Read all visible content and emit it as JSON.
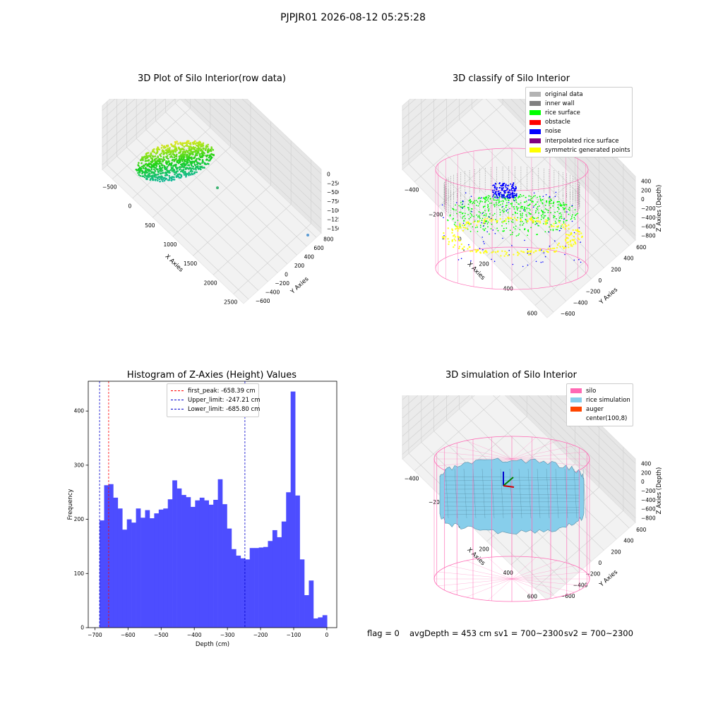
{
  "suptitle": "PJPJR01 2026-08-12 05:25:28",
  "status": {
    "flag": "flag = 0",
    "avg_depth": "avgDepth = 453 cm",
    "sv1": "sv1 = 700~2300",
    "sv2": "sv2 = 700~2300"
  },
  "colors": {
    "hist_bar": "#4d4dff",
    "peak_line": "#ff0000",
    "limit_line": "#0000cc",
    "original": "#b3b3b3",
    "inner_wall": "#808080",
    "rice_surface": "#00ff00",
    "obstacle": "#ff0000",
    "noise": "#0000ff",
    "interp": "#800080",
    "symmetric": "#ffff00",
    "silo": "#ff69b4",
    "rice_sim": "#87ceeb",
    "auger": "#ff4500"
  },
  "chart_data": [
    {
      "type": "scatter",
      "title": "3D Plot of Silo Interior(row data)",
      "xlabel": "X Axies",
      "ylabel": "Y Axies",
      "zlabel": "Z Axies (Depth)",
      "xticks": [
        "−500",
        "0",
        "500",
        "1000",
        "1500",
        "2000",
        "2500"
      ],
      "yticks": [
        "−600",
        "−400",
        "−200",
        "0",
        "200",
        "400",
        "600",
        "800"
      ],
      "zticks": [
        "0",
        "−250",
        "−500",
        "−750",
        "−1000",
        "−1250",
        "−1500"
      ]
    },
    {
      "type": "scatter",
      "title": "3D classify of Silo Interior",
      "xlabel": "X Axies",
      "ylabel": "Y Axies",
      "zlabel": "Z Axies (Depth)",
      "xticks": [
        "−400",
        "−200",
        "0",
        "200",
        "400",
        "600"
      ],
      "yticks": [
        "−600",
        "−400",
        "−200",
        "0",
        "200",
        "400",
        "600"
      ],
      "zticks": [
        "400",
        "200",
        "0",
        "−200",
        "−400",
        "−600",
        "−800"
      ],
      "legend": [
        "original data",
        "inner wall",
        "rice surface",
        "obstacle",
        "noise",
        "interpolated rice surface",
        "symmetric generated points"
      ]
    },
    {
      "type": "bar",
      "title": "Histogram of Z-Axies (Height) Values",
      "xlabel": "Depth (cm)",
      "ylabel": "Frequency",
      "xlim": [
        -720,
        30
      ],
      "ylim": [
        0,
        455
      ],
      "xticks": [
        -700,
        -600,
        -500,
        -400,
        -300,
        -200,
        -100,
        0
      ],
      "yticks": [
        0,
        100,
        200,
        300,
        400
      ],
      "bin_start": -685.8,
      "bin_width": 13.73,
      "values": [
        198,
        263,
        265,
        240,
        220,
        181,
        200,
        194,
        220,
        203,
        217,
        202,
        211,
        218,
        220,
        237,
        272,
        257,
        245,
        241,
        223,
        235,
        240,
        235,
        227,
        236,
        274,
        228,
        183,
        145,
        133,
        128,
        126,
        147,
        147,
        148,
        149,
        160,
        180,
        167,
        196,
        250,
        436,
        244,
        126,
        60,
        87,
        17,
        19,
        23
      ],
      "vlines": [
        {
          "label": "first_peak: -658.39 cm",
          "x": -658.39,
          "color": "#ff0000"
        },
        {
          "label": "Upper_limit: -247.21 cm",
          "x": -247.21,
          "color": "#0000cc"
        },
        {
          "label": "Lower_limit: -685.80 cm",
          "x": -685.8,
          "color": "#0000cc"
        }
      ]
    },
    {
      "type": "area",
      "title": "3D simulation of Silo Interior",
      "xlabel": "X Axies",
      "ylabel": "Y Axies",
      "zlabel": "Z Axies (Depth)",
      "xticks": [
        "−400",
        "−200",
        "0",
        "200",
        "400",
        "600"
      ],
      "yticks": [
        "−600",
        "−400",
        "−200",
        "0",
        "200",
        "400",
        "600"
      ],
      "zticks": [
        "400",
        "200",
        "0",
        "−200",
        "−400",
        "−600",
        "−800"
      ],
      "legend": [
        "silo",
        "rice simulation",
        "auger",
        "center(100,8)"
      ]
    }
  ]
}
